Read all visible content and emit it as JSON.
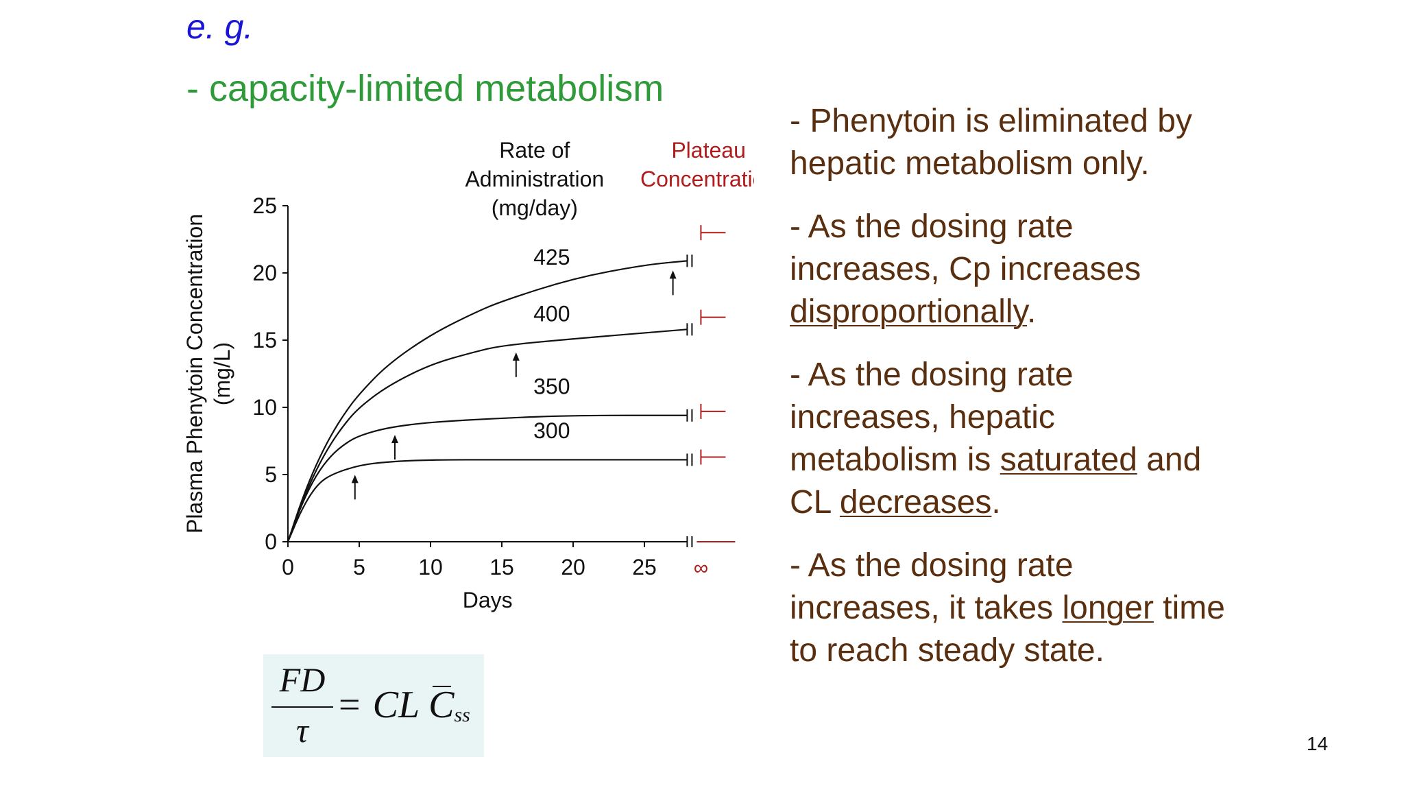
{
  "slide": {
    "eg": "e. g.",
    "subtitle": "- capacity-limited metabolism",
    "page_number": "14"
  },
  "bullets": [
    {
      "parts": [
        {
          "text": "- Phenytoin is eliminated by hepatic metabolism only.",
          "u": false
        }
      ]
    },
    {
      "parts": [
        {
          "text": "- As the dosing rate increases, Cp increases ",
          "u": false
        },
        {
          "text": "disproportionally",
          "u": true
        },
        {
          "text": ".",
          "u": false
        }
      ]
    },
    {
      "parts": [
        {
          "text": "- As the dosing rate increases, hepatic metabolism is ",
          "u": false
        },
        {
          "text": "saturated",
          "u": true
        },
        {
          "text": " and CL ",
          "u": false
        },
        {
          "text": "decreases",
          "u": true
        },
        {
          "text": ".",
          "u": false
        }
      ]
    },
    {
      "parts": [
        {
          "text": "- As the dosing rate increases, it takes ",
          "u": false
        },
        {
          "text": "longer",
          "u": true
        },
        {
          "text": " time to reach steady state.",
          "u": false
        }
      ]
    }
  ],
  "formula": {
    "numerator": "FD",
    "denominator": "τ",
    "equals": "=",
    "cl": "CL",
    "c": "C",
    "sub": "ss"
  },
  "chart_data": {
    "type": "line",
    "xlabel": "Days",
    "ylabel_line1": "Plasma Phenytoin Concentration",
    "ylabel_line2": "(mg/L)",
    "xlim": [
      0,
      28
    ],
    "ylim": [
      0,
      25
    ],
    "x_ticks": [
      0,
      5,
      10,
      15,
      20,
      25
    ],
    "y_ticks": [
      0,
      5,
      10,
      15,
      20,
      25
    ],
    "infinity_label": "∞",
    "rate_header": [
      "Rate of",
      "Administration",
      "(mg/day)"
    ],
    "plateau_header": [
      "Plateau",
      "Concentration"
    ],
    "plateau_color": "#b01c1c",
    "series": [
      {
        "name": "300",
        "plateau": 6.3,
        "points": [
          [
            0,
            0
          ],
          [
            1,
            2.5
          ],
          [
            2,
            4.2
          ],
          [
            3,
            5.0
          ],
          [
            5,
            5.7
          ],
          [
            7,
            5.95
          ],
          [
            10,
            6.1
          ],
          [
            15,
            6.1
          ],
          [
            20,
            6.1
          ],
          [
            28,
            6.1
          ]
        ],
        "arrow_day": 4.7,
        "label_x": 18.5,
        "label_y": 7.7
      },
      {
        "name": "350",
        "plateau": 9.7,
        "points": [
          [
            0,
            0
          ],
          [
            1,
            2.9
          ],
          [
            2,
            5.0
          ],
          [
            3,
            6.4
          ],
          [
            4,
            7.3
          ],
          [
            5,
            7.9
          ],
          [
            7,
            8.5
          ],
          [
            10,
            8.9
          ],
          [
            15,
            9.2
          ],
          [
            20,
            9.4
          ],
          [
            28,
            9.4
          ]
        ],
        "arrow_day": 7.5,
        "label_x": 18.5,
        "label_y": 11.0
      },
      {
        "name": "400",
        "plateau": 16.7,
        "points": [
          [
            0,
            0
          ],
          [
            1,
            3.0
          ],
          [
            2,
            5.4
          ],
          [
            3,
            7.3
          ],
          [
            4,
            8.8
          ],
          [
            5,
            10.0
          ],
          [
            7,
            11.6
          ],
          [
            10,
            13.2
          ],
          [
            13,
            14.1
          ],
          [
            15,
            14.6
          ],
          [
            20,
            15.1
          ],
          [
            28,
            15.8
          ]
        ],
        "arrow_day": 16.0,
        "label_x": 18.5,
        "label_y": 16.4
      },
      {
        "name": "425",
        "plateau": 23.0,
        "points": [
          [
            0,
            0
          ],
          [
            1,
            3.2
          ],
          [
            2,
            5.8
          ],
          [
            3,
            7.9
          ],
          [
            4,
            9.6
          ],
          [
            5,
            11.0
          ],
          [
            7,
            13.2
          ],
          [
            10,
            15.4
          ],
          [
            13,
            17.0
          ],
          [
            15,
            17.9
          ],
          [
            20,
            19.6
          ],
          [
            25,
            20.6
          ],
          [
            28,
            20.9
          ]
        ],
        "arrow_day": 27.0,
        "label_x": 18.5,
        "label_y": 20.6
      }
    ]
  }
}
